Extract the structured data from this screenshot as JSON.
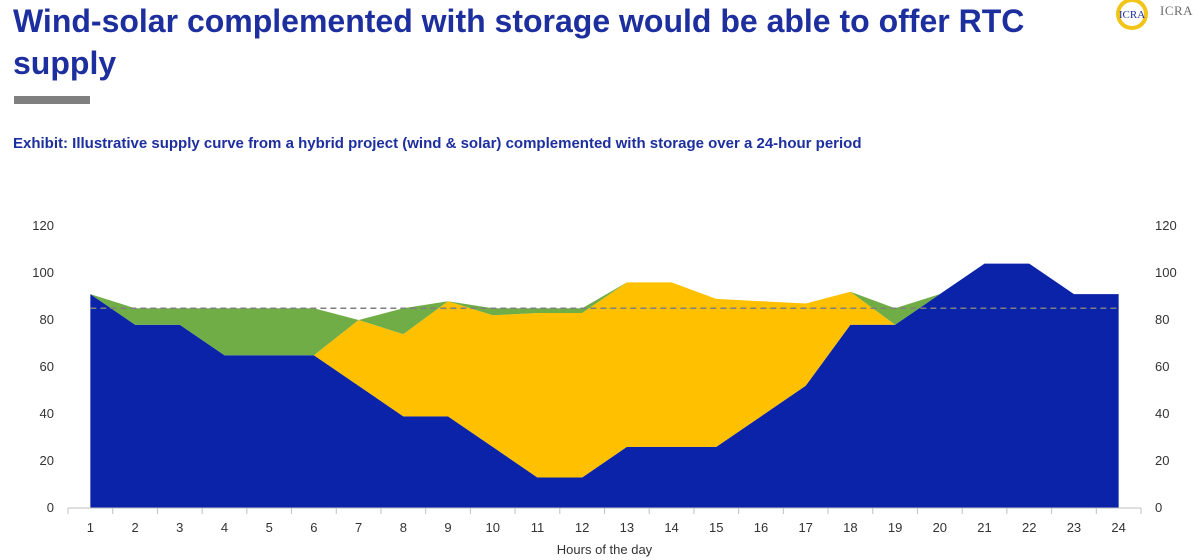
{
  "header": {
    "title": "Wind-solar complemented with storage would be able to offer RTC supply",
    "logo_text": "ICRA",
    "logo_monogram": "ICRA"
  },
  "chart_data": {
    "type": "area",
    "stacked": true,
    "title": "Exhibit: Illustrative supply curve from a hybrid project (wind & solar) complemented with storage over a 24-hour period",
    "xlabel": "Hours of the day",
    "ylabel": "",
    "ylim": [
      0,
      120
    ],
    "yticks": [
      0,
      20,
      40,
      60,
      80,
      100,
      120
    ],
    "secondary_y_axis": true,
    "x": [
      1,
      2,
      3,
      4,
      5,
      6,
      7,
      8,
      9,
      10,
      11,
      12,
      13,
      14,
      15,
      16,
      17,
      18,
      19,
      20,
      21,
      22,
      23,
      24
    ],
    "series": [
      {
        "color": "#0a23a8",
        "values": [
          91,
          78,
          78,
          65,
          65,
          65,
          52,
          39,
          39,
          26,
          13,
          13,
          26,
          26,
          26,
          39,
          52,
          78,
          78,
          91,
          104,
          104,
          91,
          91
        ]
      },
      {
        "color": "#ffc000",
        "values": [
          0,
          0,
          0,
          0,
          0,
          0,
          28,
          35,
          49,
          56,
          70,
          70,
          70,
          70,
          63,
          49,
          35,
          14,
          0,
          0,
          0,
          0,
          0,
          0
        ]
      },
      {
        "color": "#70ad47",
        "values": [
          0,
          7,
          7,
          20,
          20,
          20,
          0,
          11,
          0,
          3,
          2,
          2,
          0,
          0,
          0,
          0,
          0,
          0,
          7,
          0,
          0,
          0,
          0,
          0
        ]
      }
    ],
    "reference_line": {
      "value": 85,
      "style": "dashed",
      "color": "#7f7f7f"
    }
  }
}
